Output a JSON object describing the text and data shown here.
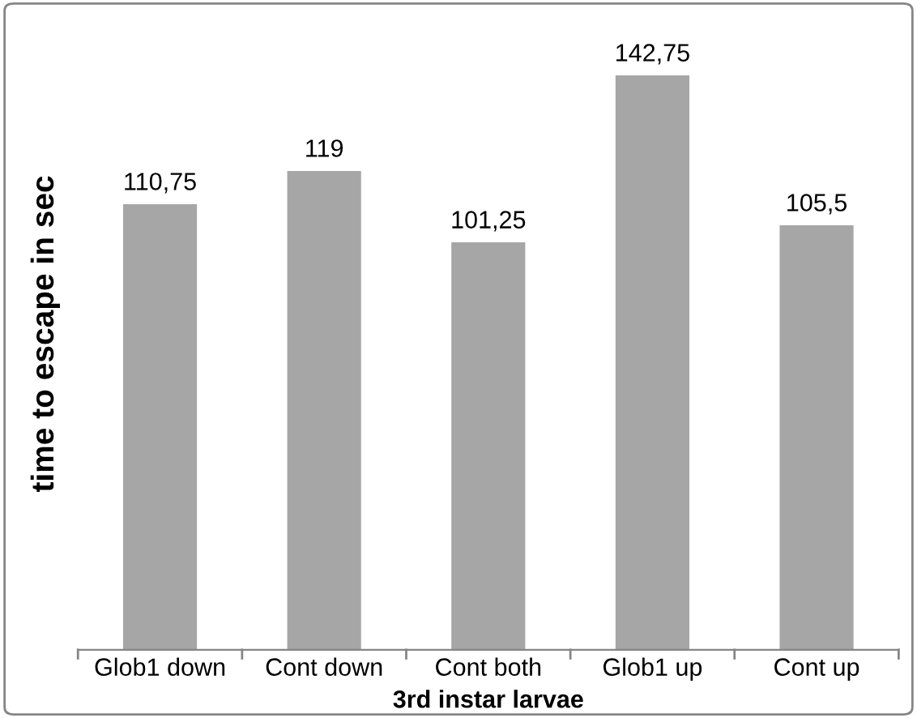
{
  "chart_data": {
    "type": "bar",
    "xlabel": "3rd instar larvae",
    "ylabel": "time to escape in sec",
    "categories": [
      "Glob1 down",
      "Cont down",
      "Cont both",
      "Glob1 up",
      "Cont up"
    ],
    "values": [
      110.75,
      119,
      101.25,
      142.75,
      105.5
    ],
    "value_labels": [
      "110,75",
      "119",
      "101,25",
      "142,75",
      "105,5"
    ],
    "color": "#a6a6a6",
    "grid": false,
    "legend": false
  }
}
